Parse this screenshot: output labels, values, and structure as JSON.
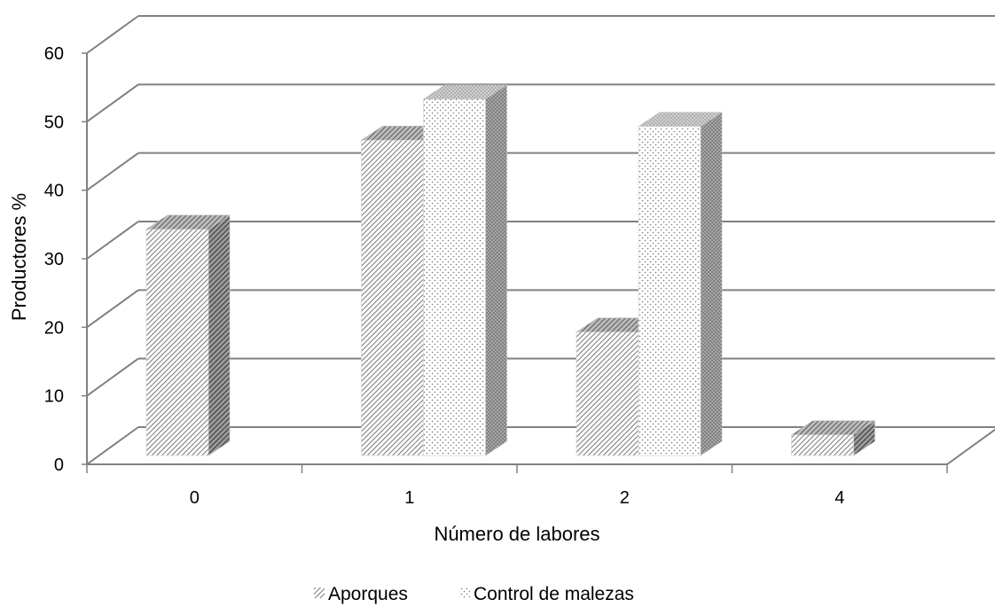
{
  "chart_data": {
    "type": "bar",
    "style": "3d-clustered-column",
    "title": "",
    "xlabel": "Número de labores",
    "ylabel": "Productores %",
    "ylim": [
      0,
      60
    ],
    "yticks": [
      0,
      10,
      20,
      30,
      40,
      50,
      60
    ],
    "categories": [
      "0",
      "1",
      "2",
      "4"
    ],
    "series": [
      {
        "name": "Aporques",
        "values": [
          33,
          46,
          18,
          3
        ],
        "pattern": "diagonal-hatch",
        "color": "#555555"
      },
      {
        "name": "Control de malezas",
        "values": [
          0,
          52,
          48,
          0
        ],
        "pattern": "dots",
        "color": "#777777"
      }
    ],
    "grid": true,
    "legend": "bottom"
  }
}
